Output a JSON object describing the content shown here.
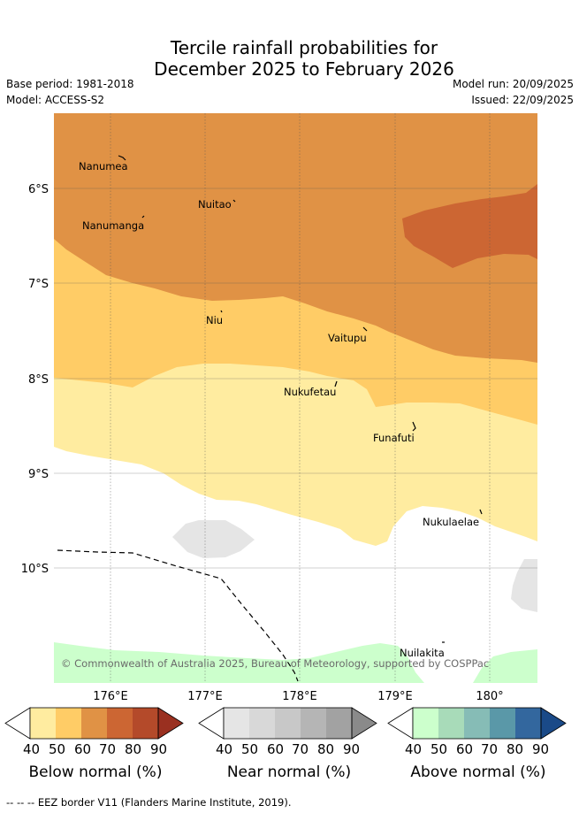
{
  "title": {
    "line1": "Tercile rainfall probabilities for",
    "line2": "December 2025 to February 2026"
  },
  "meta": {
    "base_period": "Base period: 1981-2018",
    "model": "Model: ACCESS-S2",
    "model_run": "Model run: 20/09/2025",
    "issued": "Issued: 22/09/2025"
  },
  "axes": {
    "lat_labels": [
      "6°S",
      "7°S",
      "8°S",
      "9°S",
      "10°S"
    ],
    "lon_labels": [
      "176°E",
      "177°E",
      "178°E",
      "179°E",
      "180°"
    ]
  },
  "places": [
    {
      "name": "Nanumea"
    },
    {
      "name": "Nuitao"
    },
    {
      "name": "Nanumanga"
    },
    {
      "name": "Niu"
    },
    {
      "name": "Vaitupu"
    },
    {
      "name": "Nukufetau"
    },
    {
      "name": "Funafuti"
    },
    {
      "name": "Nukulaelae"
    },
    {
      "name": "Nuilakita"
    }
  ],
  "copyright": "© Commonwealth of Australia 2025, Bureau of Meteorology, supported by COSPPac",
  "colorbars": {
    "ticks": [
      "40",
      "50",
      "60",
      "70",
      "80",
      "90"
    ],
    "below": {
      "label": "Below normal (%)",
      "colors": [
        "#ffeca0",
        "#ffcc66",
        "#e09245",
        "#cc6633",
        "#b44a2a",
        "#9a3020"
      ]
    },
    "near": {
      "label": "Near normal (%)",
      "colors": [
        "#e5e5e5",
        "#d8d8d8",
        "#c8c8c8",
        "#b5b5b5",
        "#a2a2a2",
        "#8a8a8a"
      ]
    },
    "above": {
      "label": "Above normal (%)",
      "colors": [
        "#ccffcc",
        "#a8dbb9",
        "#86bcb6",
        "#5a98a8",
        "#33679e",
        "#1a4a88"
      ]
    }
  },
  "footnote": "-- -- -- EEZ border V11 (Flanders Marine Institute, 2019)."
}
